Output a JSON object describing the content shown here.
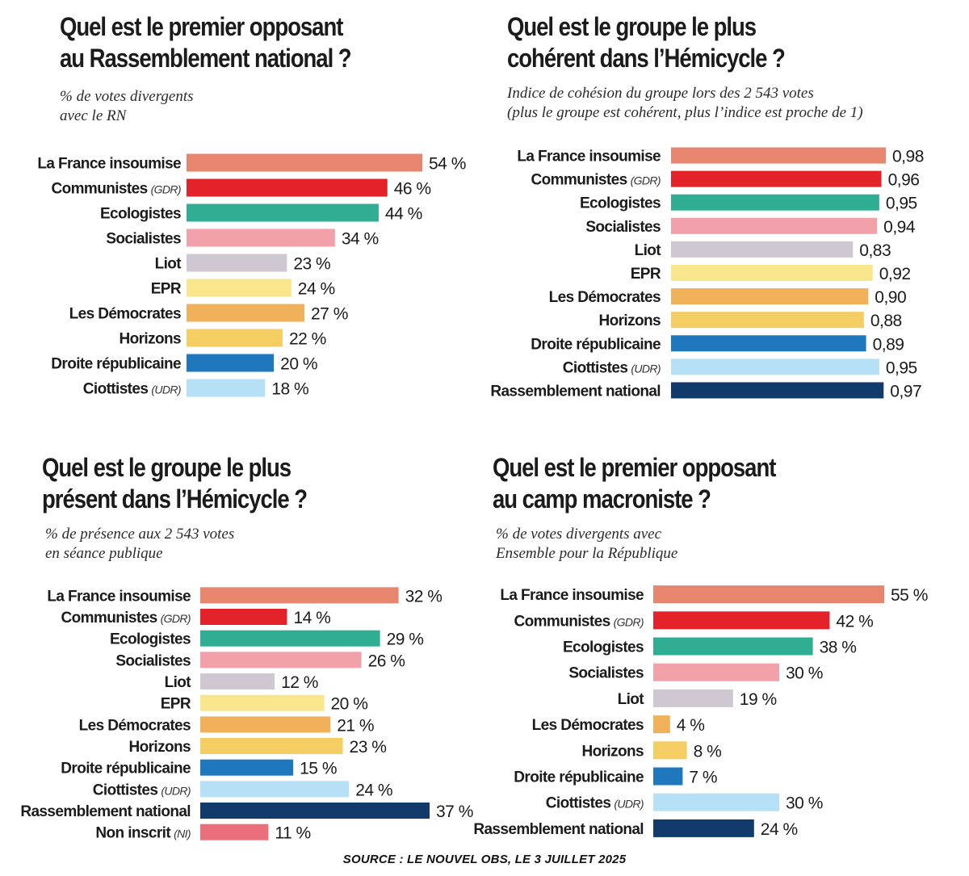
{
  "colors": {
    "La France insoumise": "#e8856e",
    "Communistes": "#e32329",
    "Ecologistes": "#2fae94",
    "Socialistes": "#f2a0a9",
    "Liot": "#cfc8d2",
    "EPR": "#f8e58c",
    "Les Démocrates": "#f1b05a",
    "Horizons": "#f5ce63",
    "Droite républicaine": "#1f78be",
    "Ciottistes": "#b5e0f5",
    "Rassemblement national": "#123a6b",
    "Non inscrit": "#ea6e7b"
  },
  "source": "SOURCE : LE NOUVEL OBS, LE 3 JUILLET 2025",
  "chart_data": [
    {
      "type": "bar",
      "orientation": "horizontal",
      "title": [
        "Quel est le premier opposant",
        "au Rassemblement national ?"
      ],
      "subtitle": [
        "% de votes divergents",
        "avec le RN"
      ],
      "categories": [
        "La France insoumise",
        "Communistes",
        "Ecologistes",
        "Socialistes",
        "Liot",
        "EPR",
        "Les Démocrates",
        "Horizons",
        "Droite républicaine",
        "Ciottistes"
      ],
      "category_suffix": [
        "",
        "(GDR)",
        "",
        "",
        "",
        "",
        "",
        "",
        "",
        "(UDR)"
      ],
      "values": [
        54,
        46,
        44,
        34,
        23,
        24,
        27,
        22,
        20,
        18
      ],
      "value_labels": [
        "54 %",
        "46 %",
        "44 %",
        "34 %",
        "23 %",
        "24 %",
        "27 %",
        "22 %",
        "20 %",
        "18 %"
      ],
      "unit": "%",
      "xlim": [
        0,
        54
      ]
    },
    {
      "type": "bar",
      "orientation": "horizontal",
      "title": [
        "Quel est le groupe le plus",
        "cohérent dans l’Hémicycle ?"
      ],
      "subtitle": [
        "Indice de cohésion du groupe lors des 2 543 votes",
        "(plus le groupe est cohérent, plus l’indice est proche de 1)"
      ],
      "categories": [
        "La France insoumise",
        "Communistes",
        "Ecologistes",
        "Socialistes",
        "Liot",
        "EPR",
        "Les Démocrates",
        "Horizons",
        "Droite républicaine",
        "Ciottistes",
        "Rassemblement national"
      ],
      "category_suffix": [
        "",
        "(GDR)",
        "",
        "",
        "",
        "",
        "",
        "",
        "",
        "(UDR)",
        ""
      ],
      "values": [
        0.98,
        0.96,
        0.95,
        0.94,
        0.83,
        0.92,
        0.9,
        0.88,
        0.89,
        0.95,
        0.97
      ],
      "value_labels": [
        "0,98",
        "0,96",
        "0,95",
        "0,94",
        "0,83",
        "0,92",
        "0,90",
        "0,88",
        "0,89",
        "0,95",
        "0,97"
      ],
      "unit": "",
      "xlim": [
        0,
        0.98
      ]
    },
    {
      "type": "bar",
      "orientation": "horizontal",
      "title": [
        "Quel est le groupe le plus",
        "présent dans l’Hémicycle ?"
      ],
      "subtitle": [
        "% de présence aux 2 543 votes",
        "en séance publique"
      ],
      "categories": [
        "La France insoumise",
        "Communistes",
        "Ecologistes",
        "Socialistes",
        "Liot",
        "EPR",
        "Les Démocrates",
        "Horizons",
        "Droite républicaine",
        "Ciottistes",
        "Rassemblement national",
        "Non inscrit"
      ],
      "category_suffix": [
        "",
        "(GDR)",
        "",
        "",
        "",
        "",
        "",
        "",
        "",
        "(UDR)",
        "",
        "(NI)"
      ],
      "values": [
        32,
        14,
        29,
        26,
        12,
        20,
        21,
        23,
        15,
        24,
        37,
        11
      ],
      "value_labels": [
        "32 %",
        "14 %",
        "29 %",
        "26 %",
        "12 %",
        "20 %",
        "21 %",
        "23 %",
        "15 %",
        "24 %",
        "37 %",
        "11 %"
      ],
      "unit": "%",
      "xlim": [
        0,
        37
      ]
    },
    {
      "type": "bar",
      "orientation": "horizontal",
      "title": [
        "Quel est le premier opposant",
        "au camp macroniste ?"
      ],
      "subtitle": [
        "% de votes divergents avec",
        "Ensemble pour la République"
      ],
      "categories": [
        "La France insoumise",
        "Communistes",
        "Ecologistes",
        "Socialistes",
        "Liot",
        "Les Démocrates",
        "Horizons",
        "Droite républicaine",
        "Ciottistes",
        "Rassemblement national"
      ],
      "category_suffix": [
        "",
        "(GDR)",
        "",
        "",
        "",
        "",
        "",
        "",
        "(UDR)",
        ""
      ],
      "values": [
        55,
        42,
        38,
        30,
        19,
        4,
        8,
        7,
        30,
        24
      ],
      "value_labels": [
        "55 %",
        "42 %",
        "38 %",
        "30 %",
        "19 %",
        "4 %",
        "8 %",
        "7 %",
        "30 %",
        "24 %"
      ],
      "unit": "%",
      "xlim": [
        0,
        55
      ]
    }
  ]
}
